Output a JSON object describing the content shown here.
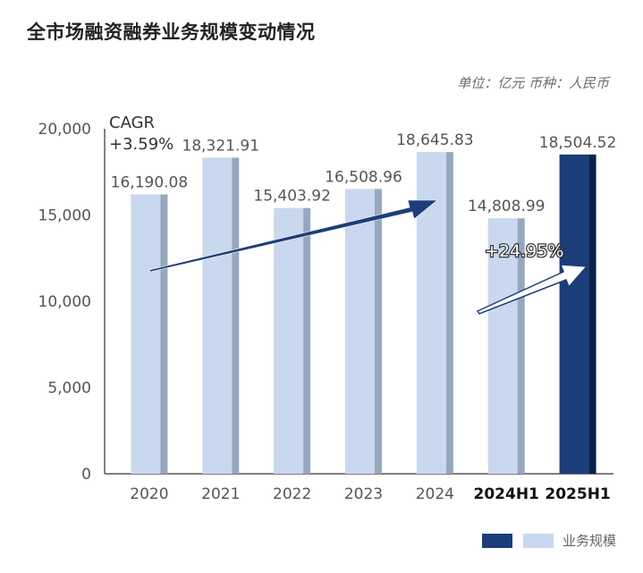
{
  "title": "全市场融资融券业务规模变动情况",
  "unit_text": "单位：亿元    币种：人民币",
  "colors": {
    "light_bar": "#c9d8ee",
    "light_bar_shade": "#97a8be",
    "dark_bar": "#1b3d7a",
    "dark_bar_shade": "#0d2148",
    "arrow": "#1b3d7a",
    "axis": "#333333"
  },
  "chart_data": {
    "type": "bar",
    "categories": [
      "2020",
      "2021",
      "2022",
      "2023",
      "2024",
      "2024H1",
      "2025H1"
    ],
    "values": [
      16190.08,
      18321.91,
      15403.92,
      16508.96,
      18645.83,
      14808.99,
      18504.52
    ],
    "value_labels": [
      "16,190.08",
      "18,321.91",
      "15,403.92",
      "16,508.96",
      "18,645.83",
      "14,808.99",
      "18,504.52"
    ],
    "highlight_categories": [
      "2024H1",
      "2025H1"
    ],
    "dark_categories": [
      "2025H1"
    ],
    "y_ticks": [
      "0",
      "5,000",
      "10,000",
      "15,000",
      "20,000"
    ],
    "ylim": [
      0,
      20000
    ],
    "legend": [
      "业务规模"
    ],
    "annotations": {
      "cagr_label": "CAGR",
      "cagr_value": "+3.59%",
      "growth_value": "+24.95%"
    }
  }
}
